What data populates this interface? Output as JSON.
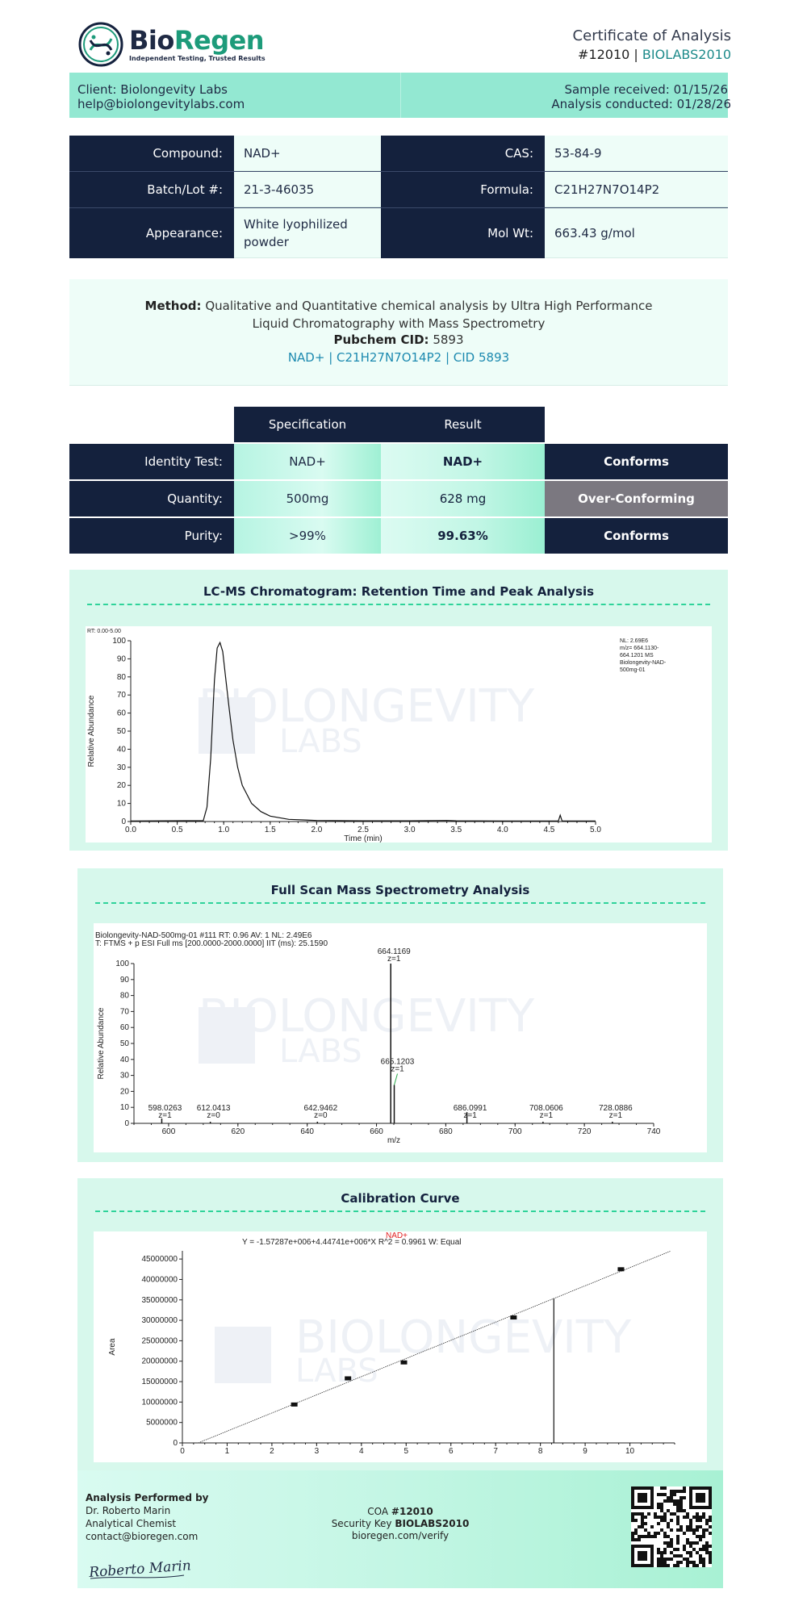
{
  "header": {
    "brand_part1": "Bio",
    "brand_part2": "Regen",
    "tagline": "Independent Testing, Trusted Results",
    "doc_title": "Certificate of Analysis",
    "coa_number": "#12010",
    "coa_separator": " | ",
    "coa_code": "BIOLABS2010"
  },
  "client": {
    "name": "Client: Biolongevity Labs",
    "email": "help@biolongevitylabs.com",
    "sample_received": "Sample received: 01/15/26",
    "analysis_conducted": "Analysis conducted: 01/28/26"
  },
  "compound": {
    "rows": [
      {
        "label": "Compound:",
        "value": "NAD+",
        "label2": "CAS:",
        "value2": "53-84-9"
      },
      {
        "label": "Batch/Lot #:",
        "value": "21-3-46035",
        "label2": "Formula:",
        "value2": "C21H27N7O14P2"
      },
      {
        "label": "Appearance:",
        "value": "White lyophilized powder",
        "label2": "Mol Wt:",
        "value2": "663.43 g/mol"
      }
    ]
  },
  "method": {
    "label": "Method:",
    "text": "Qualitative and Quantitative chemical analysis by Ultra High Performance Liquid Chromatography with Mass Spectrometry",
    "pubchem_label": "Pubchem CID:",
    "pubchem_value": "5893",
    "summary": "NAD+ | C21H27N7O14P2 | CID 5893"
  },
  "spec_table": {
    "headers": {
      "specification": "Specification",
      "result": "Result"
    },
    "rows": [
      {
        "label": "Identity Test:",
        "spec": "NAD+",
        "result": "NAD+",
        "status": "Conforms"
      },
      {
        "label": "Quantity:",
        "spec": "500mg",
        "result": "628 mg",
        "status": "Over-Conforming"
      },
      {
        "label": "Purity:",
        "spec": ">99%",
        "result": "99.63%",
        "status": "Conforms"
      }
    ]
  },
  "watermark": {
    "line1": "BIOLONGEVITY",
    "line2": "LABS"
  },
  "chromatogram": {
    "title": "LC-MS Chromatogram: Retention Time and Peak Analysis",
    "rt_label": "RT: 0.00-5.00",
    "legend": [
      "NL: 2.69E6",
      "m/z= 664.1130-",
      "664.1201 MS",
      "Biolongevity-NAD-",
      "500mg-01"
    ]
  },
  "mass_spec": {
    "title": "Full Scan Mass Spectrometry Analysis",
    "header1": "Biolongevity-NAD-500mg-01 #111 RT: 0.96 AV: 1 NL: 2.49E6",
    "header2": "T: FTMS + p ESI Full ms [200.0000-2000.0000] IIT (ms): 25.1590"
  },
  "calibration": {
    "title": "Calibration Curve",
    "compound_label": "NAD+",
    "equation": "Y = -1.57287e+006+4.44741e+006*X   R^2 = 0.9961   W: Equal"
  },
  "chart_data": [
    {
      "type": "line",
      "title": "LC-MS Chromatogram: Retention Time and Peak Analysis",
      "xlabel": "Time (min)",
      "ylabel": "Relative Abundance",
      "xlim": [
        0,
        5
      ],
      "ylim": [
        0,
        100
      ],
      "xticks": [
        "0.0",
        "0.5",
        "1.0",
        "1.5",
        "2.0",
        "2.5",
        "3.0",
        "3.5",
        "4.0",
        "4.5",
        "5.0"
      ],
      "yticks": [
        "0",
        "10",
        "20",
        "30",
        "40",
        "50",
        "60",
        "70",
        "80",
        "90",
        "100"
      ],
      "x": [
        0.0,
        0.78,
        0.82,
        0.86,
        0.9,
        0.93,
        0.96,
        0.99,
        1.02,
        1.06,
        1.1,
        1.15,
        1.2,
        1.3,
        1.4,
        1.5,
        1.7,
        2.0,
        2.5,
        3.0,
        3.4,
        3.5,
        4.0,
        4.6,
        4.62,
        4.64,
        5.0
      ],
      "y": [
        0.3,
        0.5,
        8,
        35,
        78,
        96,
        99,
        94,
        80,
        62,
        45,
        30,
        20,
        10,
        5.5,
        3,
        1.2,
        0.6,
        0.4,
        0.4,
        0.6,
        0.4,
        0.3,
        0.3,
        3.5,
        0.3,
        0.3
      ]
    },
    {
      "type": "bar",
      "title": "Full Scan Mass Spectrometry Analysis",
      "xlabel": "m/z",
      "ylabel": "Relative Abundance",
      "xlim": [
        590,
        740
      ],
      "ylim": [
        0,
        100
      ],
      "xticks": [
        "600",
        "620",
        "640",
        "660",
        "680",
        "700",
        "720",
        "740"
      ],
      "yticks": [
        "0",
        "10",
        "20",
        "30",
        "40",
        "50",
        "60",
        "70",
        "80",
        "90",
        "100"
      ],
      "peaks": [
        {
          "mz": 598.0263,
          "intensity": 3,
          "label": "598.0263",
          "charge": "z=1"
        },
        {
          "mz": 612.0413,
          "intensity": 1,
          "label": "612.0413",
          "charge": "z=0"
        },
        {
          "mz": 642.9462,
          "intensity": 1,
          "label": "642.9462",
          "charge": "z=0"
        },
        {
          "mz": 664.1169,
          "intensity": 100,
          "label": "664.1169",
          "charge": "z=1"
        },
        {
          "mz": 665.1203,
          "intensity": 24,
          "label": "665.1203",
          "charge": "z=1"
        },
        {
          "mz": 686.0991,
          "intensity": 7,
          "label": "686.0991",
          "charge": "z=1"
        },
        {
          "mz": 708.0606,
          "intensity": 1,
          "label": "708.0606",
          "charge": "z=1"
        },
        {
          "mz": 728.0886,
          "intensity": 1,
          "label": "728.0886",
          "charge": "z=1"
        }
      ]
    },
    {
      "type": "scatter",
      "title": "Calibration Curve",
      "xlabel": "",
      "ylabel": "Area",
      "xlim": [
        0,
        11
      ],
      "ylim": [
        0,
        47000000
      ],
      "xticks": [
        "0",
        "1",
        "2",
        "3",
        "4",
        "5",
        "6",
        "7",
        "8",
        "9",
        "10"
      ],
      "yticks": [
        "0",
        "5000000",
        "10000000",
        "15000000",
        "20000000",
        "25000000",
        "30000000",
        "35000000",
        "40000000",
        "45000000"
      ],
      "points": [
        {
          "x": 2.5,
          "y": 9400000
        },
        {
          "x": 3.7,
          "y": 15800000
        },
        {
          "x": 4.95,
          "y": 19700000
        },
        {
          "x": 7.4,
          "y": 30700000
        },
        {
          "x": 9.8,
          "y": 42500000
        }
      ],
      "fit": {
        "slope": 4447410,
        "intercept": -1572870
      },
      "marker_x": 8.3
    }
  ],
  "footer": {
    "performed_by_label": "Analysis Performed by",
    "analyst": "Dr. Roberto Marin",
    "role": "Analytical Chemist",
    "contact": "contact@bioregen.com",
    "coa_label": "COA",
    "coa_number": "#12010",
    "security_label": "Security Key",
    "security_key": "BIOLABS2010",
    "verify_url": "bioregen.com/verify",
    "signature": "Roberto Marin"
  },
  "colors": {
    "navy": "#14213d",
    "mint": "#93e8d2",
    "teal": "#1d9b7a",
    "grey_status": "#7b7880"
  }
}
